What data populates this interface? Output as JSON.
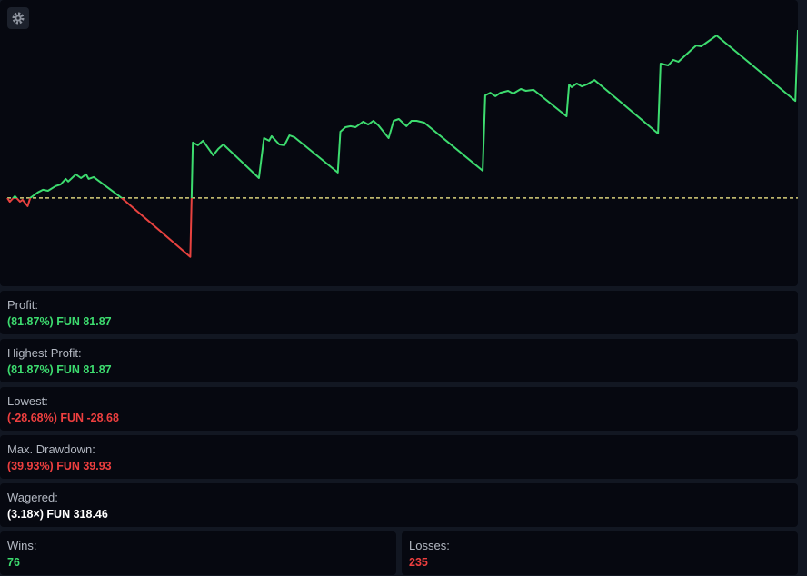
{
  "chart_data": {
    "type": "line",
    "x": [
      0,
      1,
      3,
      5,
      6,
      8,
      9,
      12,
      14,
      16,
      19,
      21,
      23,
      24,
      27,
      29,
      31,
      32,
      34,
      45,
      72,
      73,
      75,
      77,
      81,
      83,
      85,
      99,
      101,
      103,
      104,
      107,
      109,
      111,
      113,
      130,
      131,
      133,
      135,
      137,
      140,
      142,
      144,
      146,
      150,
      152,
      154,
      157,
      159,
      161,
      164,
      187,
      188,
      190,
      192,
      194,
      197,
      199,
      202,
      204,
      207,
      220,
      221,
      222,
      224,
      226,
      228,
      231,
      256,
      257,
      260,
      262,
      264,
      269,
      271,
      273,
      279,
      310,
      311
    ],
    "values": [
      0,
      -1.8,
      0.9,
      -1.8,
      -0.9,
      -4.0,
      0,
      2.7,
      4.0,
      3.5,
      5.8,
      6.6,
      9.3,
      8.0,
      11.5,
      9.7,
      11.5,
      9.3,
      10.2,
      0,
      -28.68,
      27.0,
      25.7,
      27.9,
      20.8,
      23.9,
      26.1,
      9.7,
      29.2,
      27.9,
      30.1,
      26.1,
      25.7,
      30.5,
      29.6,
      12.4,
      32.3,
      34.5,
      35.0,
      34.5,
      37.2,
      35.8,
      37.6,
      35.4,
      29.2,
      37.6,
      38.5,
      35.0,
      37.6,
      37.6,
      36.7,
      13.3,
      50.0,
      51.3,
      49.6,
      51.3,
      52.2,
      50.9,
      53.1,
      52.2,
      52.7,
      39.8,
      55.3,
      54.0,
      55.8,
      54.4,
      55.3,
      57.5,
      31.4,
      65.5,
      64.6,
      67.3,
      66.4,
      72.1,
      74.3,
      73.9,
      79.2,
      47.3,
      81.87
    ],
    "xlim": [
      0,
      311
    ],
    "ylim": [
      -43,
      96.5
    ],
    "reference_line": 0,
    "color": "#3ddc6f",
    "negative_color": "#e8423f",
    "reference_color": "#d8cf7a"
  },
  "stats": [
    {
      "label": "Profit:",
      "value": "(81.87%) FUN 81.87",
      "color": "#3ddc6f"
    },
    {
      "label": "Highest Profit:",
      "value": "(81.87%) FUN 81.87",
      "color": "#3ddc6f"
    },
    {
      "label": "Lowest:",
      "value": "(-28.68%) FUN -28.68",
      "color": "#ee3f3f"
    },
    {
      "label": "Max. Drawdown:",
      "value": "(39.93%) FUN 39.93",
      "color": "#ee3f3f"
    },
    {
      "label": "Wagered:",
      "value": "(3.18×) FUN 318.46",
      "color": "#ffffff"
    }
  ],
  "wins": {
    "label": "Wins:",
    "value": "76",
    "color": "#3ddc6f"
  },
  "losses": {
    "label": "Losses:",
    "value": "235",
    "color": "#ee3f3f"
  }
}
